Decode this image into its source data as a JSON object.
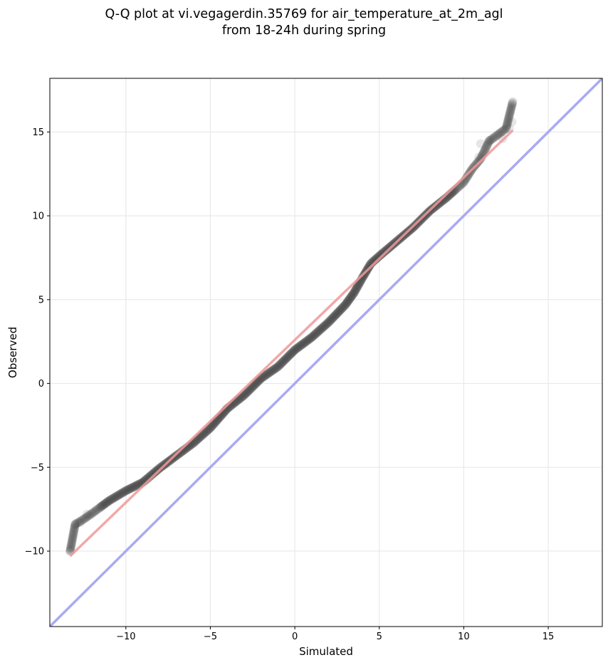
{
  "chart_data": {
    "type": "scatter",
    "title_line1": "Q-Q plot at vi.vegagerdin.35769 for air_temperature_at_2m_agl",
    "title_line2": "from 18-24h during spring",
    "xlabel": "Simulated",
    "ylabel": "Observed",
    "xlim": [
      -14.5,
      18.2
    ],
    "ylim": [
      -14.5,
      18.2
    ],
    "xticks": [
      -10,
      -5,
      0,
      5,
      10,
      15
    ],
    "yticks": [
      -10,
      -5,
      0,
      5,
      10,
      15
    ],
    "grid": true,
    "colors": {
      "points": "#3a3a3a",
      "fit_line": "#ee9999",
      "identity_line": "#a9aaf2",
      "grid": "#e9e9e9"
    },
    "quantile_curve": [
      [
        -13.3,
        -10.0
      ],
      [
        -13.0,
        -8.4
      ],
      [
        -12.5,
        -8.1
      ],
      [
        -12.0,
        -7.75
      ],
      [
        -11.0,
        -7.0
      ],
      [
        -10.0,
        -6.4
      ],
      [
        -9.0,
        -5.9
      ],
      [
        -8.0,
        -5.05
      ],
      [
        -7.0,
        -4.3
      ],
      [
        -6.0,
        -3.55
      ],
      [
        -5.0,
        -2.65
      ],
      [
        -4.0,
        -1.5
      ],
      [
        -3.0,
        -0.7
      ],
      [
        -2.0,
        0.3
      ],
      [
        -1.0,
        1.0
      ],
      [
        0.0,
        2.0
      ],
      [
        1.0,
        2.75
      ],
      [
        2.0,
        3.65
      ],
      [
        3.0,
        4.7
      ],
      [
        3.5,
        5.4
      ],
      [
        4.0,
        6.3
      ],
      [
        4.5,
        7.15
      ],
      [
        5.0,
        7.6
      ],
      [
        6.0,
        8.45
      ],
      [
        7.0,
        9.3
      ],
      [
        8.0,
        10.3
      ],
      [
        9.0,
        11.1
      ],
      [
        10.0,
        12.0
      ],
      [
        10.5,
        12.8
      ],
      [
        11.0,
        13.4
      ],
      [
        11.5,
        14.45
      ],
      [
        12.5,
        15.2
      ],
      [
        12.9,
        16.8
      ]
    ],
    "outlier_points": [
      [
        -13.3,
        -10.0
      ],
      [
        -13.0,
        -8.4
      ],
      [
        -12.7,
        -8.3
      ],
      [
        -12.3,
        -7.8
      ],
      [
        10.9,
        13.5
      ],
      [
        11.0,
        14.3
      ],
      [
        11.5,
        14.5
      ],
      [
        12.3,
        14.6
      ],
      [
        12.7,
        15.2
      ],
      [
        12.85,
        15.6
      ],
      [
        12.9,
        16.8
      ]
    ],
    "fit_line": [
      [
        -13.3,
        -10.3
      ],
      [
        12.9,
        15.1
      ]
    ],
    "identity_line": [
      [
        -14.5,
        -14.5
      ],
      [
        18.2,
        18.2
      ]
    ]
  }
}
